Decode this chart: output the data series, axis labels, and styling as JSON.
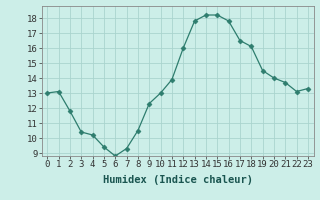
{
  "x": [
    0,
    1,
    2,
    3,
    4,
    5,
    6,
    7,
    8,
    9,
    10,
    11,
    12,
    13,
    14,
    15,
    16,
    17,
    18,
    19,
    20,
    21,
    22,
    23
  ],
  "y": [
    13,
    13.1,
    11.8,
    10.4,
    10.2,
    9.4,
    8.8,
    9.3,
    10.5,
    12.3,
    13.0,
    13.9,
    16.0,
    17.8,
    18.2,
    18.2,
    17.8,
    16.5,
    16.1,
    14.5,
    14.0,
    13.7,
    13.1,
    13.3
  ],
  "xlabel": "Humidex (Indice chaleur)",
  "ylim": [
    8.8,
    18.8
  ],
  "xlim": [
    -0.5,
    23.5
  ],
  "yticks": [
    9,
    10,
    11,
    12,
    13,
    14,
    15,
    16,
    17,
    18
  ],
  "xticks": [
    0,
    1,
    2,
    3,
    4,
    5,
    6,
    7,
    8,
    9,
    10,
    11,
    12,
    13,
    14,
    15,
    16,
    17,
    18,
    19,
    20,
    21,
    22,
    23
  ],
  "line_color": "#2e7d6e",
  "marker": "D",
  "marker_size": 2.5,
  "bg_color": "#cceee8",
  "grid_color": "#aad4ce",
  "tick_label_fontsize": 6.5,
  "xlabel_fontsize": 7.5
}
